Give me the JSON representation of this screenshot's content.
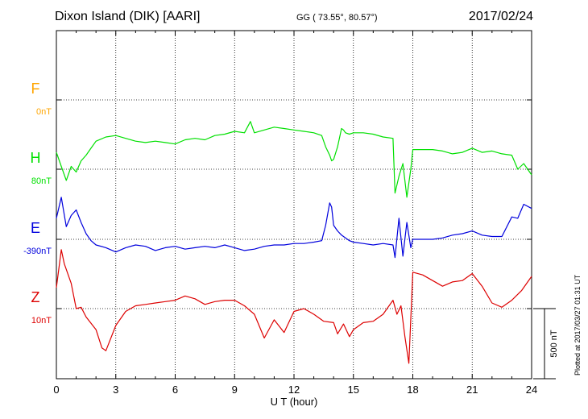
{
  "header": {
    "title": "Dixon Island (DIK)  [AARI]",
    "coords": "GG ( 73.55°,  80.57°)",
    "date": "2017/02/24",
    "plotted": "Plotted at 2017/03/27 01:31  UT"
  },
  "chart_data": {
    "type": "line",
    "title": "Dixon Island (DIK)  [AARI]",
    "xlabel": "U T (hour)",
    "xlim": [
      0,
      24
    ],
    "xticks": [
      0,
      3,
      6,
      9,
      12,
      15,
      18,
      21,
      24
    ],
    "grid": true,
    "scale_bar": {
      "label": "500 nT",
      "value_nT": 500
    },
    "channels": [
      {
        "name": "F",
        "baseline": "0nT",
        "color": "#ffa500"
      },
      {
        "name": "H",
        "baseline": "80nT",
        "color": "#00e000"
      },
      {
        "name": "E",
        "baseline": "-390nT",
        "color": "#0000dd"
      },
      {
        "name": "Z",
        "baseline": "10nT",
        "color": "#dd0000"
      }
    ],
    "series": [
      {
        "name": "H",
        "unit": "nT",
        "x": [
          0,
          0.25,
          0.5,
          0.75,
          1,
          1.25,
          1.5,
          1.75,
          2,
          2.5,
          3,
          3.5,
          4,
          4.5,
          5,
          5.5,
          6,
          6.5,
          7,
          7.5,
          8,
          8.5,
          9,
          9.5,
          9.8,
          10,
          10.5,
          11,
          11.5,
          12,
          12.5,
          13,
          13.4,
          13.6,
          13.8,
          13.9,
          14,
          14.2,
          14.4,
          14.5,
          14.6,
          14.8,
          15,
          15.5,
          16,
          16.5,
          17,
          17.1,
          17.3,
          17.5,
          17.7,
          17.9,
          18,
          18.5,
          19,
          19.5,
          20,
          20.5,
          21,
          21.5,
          22,
          22.5,
          23,
          23.3,
          23.6,
          24
        ],
        "y": [
          120,
          20,
          -80,
          20,
          -20,
          60,
          100,
          150,
          200,
          230,
          240,
          220,
          200,
          190,
          200,
          190,
          180,
          210,
          220,
          210,
          240,
          250,
          270,
          260,
          340,
          260,
          280,
          300,
          290,
          280,
          270,
          260,
          240,
          160,
          100,
          60,
          70,
          160,
          290,
          280,
          260,
          250,
          260,
          260,
          250,
          230,
          220,
          -170,
          -50,
          40,
          -200,
          0,
          140,
          140,
          140,
          130,
          110,
          120,
          150,
          120,
          130,
          110,
          100,
          0,
          40,
          -40
        ]
      },
      {
        "name": "E",
        "unit": "nT",
        "x": [
          0,
          0.25,
          0.5,
          0.75,
          1,
          1.25,
          1.5,
          1.75,
          2,
          2.5,
          3,
          3.5,
          4,
          4.5,
          5,
          5.5,
          6,
          6.5,
          7,
          7.5,
          8,
          8.5,
          9,
          9.5,
          10,
          10.5,
          11,
          11.5,
          12,
          12.5,
          13,
          13.4,
          13.6,
          13.8,
          13.9,
          14,
          14.2,
          14.4,
          14.6,
          14.8,
          15,
          15.5,
          16,
          16.5,
          17,
          17.1,
          17.3,
          17.5,
          17.7,
          17.9,
          18,
          18.5,
          19,
          19.5,
          20,
          20.5,
          21,
          21.5,
          22,
          22.5,
          23,
          23.3,
          23.6,
          24
        ],
        "y": [
          150,
          300,
          90,
          170,
          210,
          120,
          40,
          -10,
          -40,
          -60,
          -90,
          -60,
          -40,
          -50,
          -80,
          -60,
          -50,
          -70,
          -60,
          -50,
          -60,
          -40,
          -60,
          -80,
          -70,
          -50,
          -40,
          -40,
          -30,
          -30,
          -20,
          -10,
          100,
          260,
          230,
          100,
          60,
          30,
          10,
          -10,
          -20,
          -30,
          -40,
          -30,
          -40,
          -130,
          150,
          -120,
          120,
          -60,
          0,
          0,
          0,
          10,
          30,
          40,
          60,
          30,
          20,
          20,
          160,
          150,
          250,
          220
        ]
      },
      {
        "name": "Z",
        "unit": "nT",
        "x": [
          0,
          0.25,
          0.4,
          0.75,
          1,
          1.25,
          1.5,
          2,
          2.3,
          2.5,
          3,
          3.5,
          4,
          4.5,
          5,
          5.5,
          6,
          6.5,
          7,
          7.5,
          8,
          8.5,
          9,
          9.5,
          10,
          10.5,
          11,
          11.5,
          12,
          12.5,
          13,
          13.5,
          14,
          14.2,
          14.5,
          14.8,
          15,
          15.5,
          16,
          16.5,
          17,
          17.2,
          17.4,
          17.6,
          17.8,
          18,
          18.5,
          19,
          19.5,
          20,
          20.5,
          21,
          21.5,
          22,
          22.5,
          23,
          23.5,
          24
        ],
        "y": [
          150,
          420,
          320,
          180,
          0,
          10,
          -60,
          -150,
          -280,
          -300,
          -120,
          -20,
          20,
          30,
          40,
          50,
          60,
          90,
          70,
          30,
          50,
          60,
          60,
          20,
          -40,
          -210,
          -80,
          -170,
          -20,
          0,
          -40,
          -90,
          -100,
          -180,
          -110,
          -200,
          -150,
          -100,
          -90,
          -40,
          60,
          -40,
          20,
          -200,
          -390,
          260,
          240,
          200,
          160,
          190,
          200,
          250,
          160,
          40,
          10,
          60,
          130,
          230
        ]
      }
    ]
  }
}
